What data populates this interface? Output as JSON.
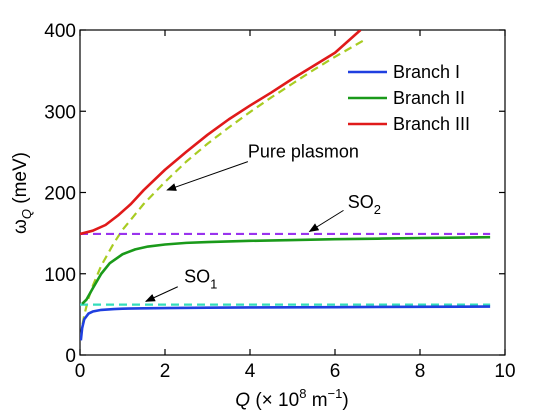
{
  "chart_data": {
    "type": "line",
    "xlabel": {
      "var": "Q",
      "unit_prefix": " (× 10",
      "exp": "8",
      "unit": " m",
      "unit_exp": "−1",
      "close": ")"
    },
    "ylabel": {
      "var": "ω",
      "sub": "Q",
      "unit": " (meV)"
    },
    "xlim": [
      0,
      10
    ],
    "ylim": [
      0,
      400
    ],
    "xticks": [
      0,
      2,
      4,
      6,
      8,
      10
    ],
    "yticks": [
      0,
      100,
      200,
      300,
      400
    ],
    "xtick_labels": [
      "0",
      "2",
      "4",
      "6",
      "8",
      "10"
    ],
    "ytick_labels": [
      "0",
      "100",
      "200",
      "300",
      "400"
    ],
    "grid": false,
    "legend_position": "top-right",
    "colors": {
      "branch_i": "#1f3fe0",
      "branch_ii": "#1a9a1a",
      "branch_iii": "#e01a1a",
      "pure_plasmon": "#a8cc22",
      "so2": "#9933ee",
      "so1": "#33ddbb"
    },
    "series": [
      {
        "name": "Branch I",
        "style": "solid",
        "color_key": "branch_i",
        "x": [
          0.02,
          0.05,
          0.1,
          0.2,
          0.3,
          0.5,
          0.8,
          1,
          1.5,
          2,
          3,
          4,
          5,
          6,
          7,
          8,
          9,
          9.65
        ],
        "y": [
          18,
          33,
          44,
          51,
          53.5,
          55.5,
          56.5,
          57,
          57.5,
          57.8,
          58.2,
          58.5,
          58.7,
          58.9,
          59.1,
          59.3,
          59.5,
          59.6
        ]
      },
      {
        "name": "Branch II",
        "style": "solid",
        "color_key": "branch_ii",
        "x": [
          0.05,
          0.15,
          0.3,
          0.5,
          0.7,
          1,
          1.3,
          1.6,
          2,
          2.5,
          3,
          4,
          5,
          6,
          7,
          8,
          9,
          9.65
        ],
        "y": [
          63,
          68,
          82,
          100,
          113,
          124,
          130,
          133.5,
          136,
          138,
          139,
          140.5,
          141.5,
          142.5,
          143.2,
          144,
          144.5,
          145
        ]
      },
      {
        "name": "Branch III",
        "style": "solid",
        "color_key": "branch_iii",
        "x": [
          0,
          0.3,
          0.6,
          0.9,
          1.2,
          1.5,
          2,
          2.5,
          3,
          3.5,
          4,
          4.5,
          5,
          5.5,
          6,
          6.6
        ],
        "y": [
          149,
          153,
          160,
          172,
          186,
          203,
          228,
          250,
          271,
          290,
          307,
          323,
          340,
          356,
          372,
          400
        ]
      },
      {
        "name": "Pure plasmon",
        "style": "dashed",
        "color_key": "pure_plasmon",
        "x": [
          0.02,
          0.05,
          0.1,
          0.2,
          0.3,
          0.5,
          0.8,
          1,
          1.5,
          2,
          2.5,
          3,
          3.5,
          4,
          4.5,
          5,
          5.5,
          6,
          6.5,
          6.7
        ],
        "y": [
          22,
          35,
          49,
          70,
          85,
          110,
          138,
          154,
          186,
          213,
          238,
          260,
          280,
          299,
          317,
          334,
          351,
          367,
          382,
          388
        ]
      },
      {
        "name": "SO2",
        "style": "dashed",
        "color_key": "so2",
        "x": [
          0,
          9.65
        ],
        "y": [
          149,
          149
        ]
      },
      {
        "name": "SO1",
        "style": "dashed",
        "color_key": "so1",
        "x": [
          0,
          9.65
        ],
        "y": [
          62,
          62
        ]
      }
    ],
    "legend": [
      {
        "label": "Branch I",
        "color_key": "branch_i"
      },
      {
        "label": "Branch II",
        "color_key": "branch_ii"
      },
      {
        "label": "Branch III",
        "color_key": "branch_iii"
      }
    ],
    "annotations": [
      {
        "id": "pure-plasmon",
        "text": "Pure plasmon",
        "sub": "",
        "text_anchor": [
          3.95,
          243
        ],
        "arrow_from": [
          3.95,
          238
        ],
        "arrow_to": [
          2.05,
          203
        ]
      },
      {
        "id": "so2",
        "text": "SO",
        "sub": "2",
        "text_anchor": [
          6.3,
          181
        ],
        "arrow_from": [
          6.2,
          178
        ],
        "arrow_to": [
          5.4,
          152
        ]
      },
      {
        "id": "so1",
        "text": "SO",
        "sub": "1",
        "text_anchor": [
          2.45,
          89
        ],
        "arrow_from": [
          2.3,
          84
        ],
        "arrow_to": [
          1.55,
          66
        ]
      }
    ]
  }
}
